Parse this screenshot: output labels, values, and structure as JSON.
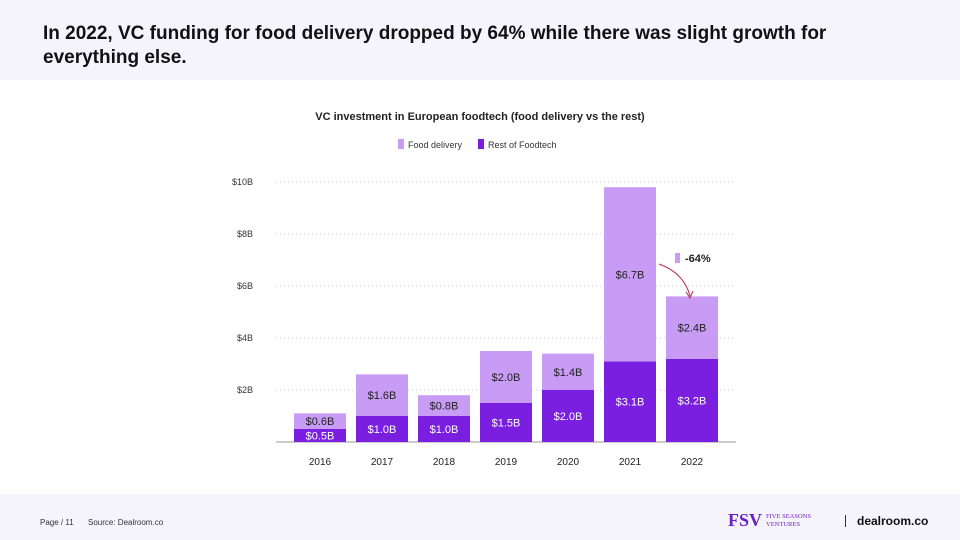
{
  "header": {
    "title": "In 2022, VC funding for food delivery dropped by 64% while there was slight growth for everything else."
  },
  "footer": {
    "page": "Page / 11",
    "source": "Source: Dealroom.co",
    "logo1": "FIVE SEASONS VENTURES",
    "logo1_mark": "FSV",
    "logo2": "dealroom.co"
  },
  "chart_data": {
    "type": "bar",
    "stacked": true,
    "title": "VC investment in European foodtech (food delivery vs the rest)",
    "categories": [
      "2016",
      "2017",
      "2018",
      "2019",
      "2020",
      "2021",
      "2022"
    ],
    "series": [
      {
        "name": "Rest of Foodtech",
        "color": "#7a1fe0",
        "values": [
          0.5,
          1.0,
          1.0,
          1.5,
          2.0,
          3.1,
          3.2
        ],
        "labels": [
          "$0.5B",
          "$1.0B",
          "$1.0B",
          "$1.5B",
          "$2.0B",
          "$3.1B",
          "$3.2B"
        ]
      },
      {
        "name": "Food delivery",
        "color": "#c89cf5",
        "values": [
          0.6,
          1.6,
          0.8,
          2.0,
          1.4,
          6.7,
          2.4
        ],
        "labels": [
          "$0.6B",
          "$1.6B",
          "$0.8B",
          "$2.0B",
          "$1.4B",
          "$6.7B",
          "$2.4B"
        ]
      }
    ],
    "yticks": [
      2,
      4,
      6,
      8,
      10
    ],
    "ytick_labels": [
      "$2B",
      "$4B",
      "$6B",
      "$8B",
      "$10B"
    ],
    "ylim": [
      0,
      10
    ],
    "grid": true,
    "legend": "top-center",
    "annotation": "-64%"
  }
}
